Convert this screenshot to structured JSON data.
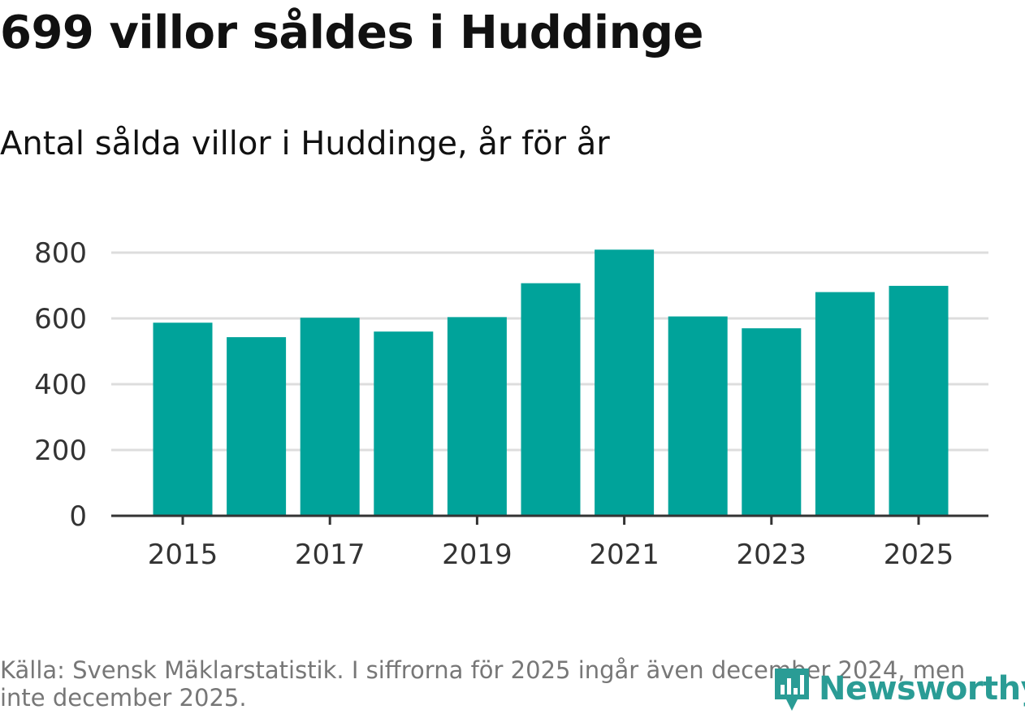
{
  "title": "699 villor såldes i Huddinge",
  "subtitle": "Antal sålda villor i Huddinge, år för år",
  "source": "Källa: Svensk Mäklarstatistik. I siffrorna för 2025 ingår även december 2024, men inte december 2025.",
  "logo": {
    "text": "Newsworthy",
    "icon": "bar-chart-pin-icon"
  },
  "colors": {
    "bar": "#00a39a",
    "grid": "#dddddd",
    "axis": "#333333",
    "logo": "#2a9c95"
  },
  "chart_data": {
    "type": "bar",
    "title": "Antal sålda villor i Huddinge, år för år",
    "categories": [
      "2015",
      "2016",
      "2017",
      "2018",
      "2019",
      "2020",
      "2021",
      "2022",
      "2023",
      "2024",
      "2025"
    ],
    "values": [
      587,
      543,
      602,
      560,
      604,
      707,
      809,
      606,
      570,
      680,
      699
    ],
    "xticks": [
      "2015",
      "2017",
      "2019",
      "2021",
      "2023",
      "2025"
    ],
    "yticks": [
      0,
      200,
      400,
      600,
      800
    ],
    "ylim": [
      0,
      800
    ],
    "xlabel": "",
    "ylabel": "",
    "grid": true,
    "legend": "none"
  }
}
